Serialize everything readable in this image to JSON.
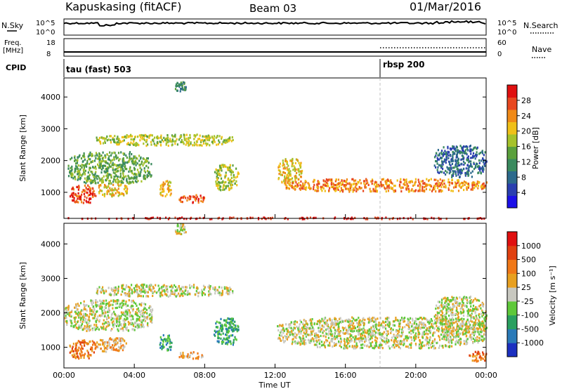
{
  "header": {
    "station": "Kapuskasing (fitACF)",
    "beam": "Beam 03",
    "date": "01/Mar/2016"
  },
  "top_panels": {
    "nsky_label": "N.Sky",
    "nsearch_label": "N.Search",
    "nsky_ticks": [
      "10^5",
      "10^0"
    ],
    "nsearch_ticks": [
      "10^5",
      "10^0"
    ],
    "freq_label": "Freq.",
    "freq_unit": "[MHz]",
    "freq_ticks": [
      "18",
      "8"
    ],
    "nave_label": "Nave",
    "nave_ticks": [
      "60",
      "0"
    ],
    "cpid_label": "CPID",
    "cpid_segments": [
      {
        "label": "tau (fast) 503",
        "start_h": 0
      },
      {
        "label": "rbsp 200",
        "start_h": 18
      }
    ]
  },
  "chart_data": [
    {
      "type": "heatmap",
      "name": "power",
      "ylabel": "Slant Range [km]",
      "yticks": [
        1000,
        2000,
        3000,
        4000
      ],
      "ylim": [
        180,
        4600
      ],
      "xlim": [
        0,
        24
      ],
      "colorbar": {
        "label": "Power [dB]",
        "ticks": [
          4,
          8,
          12,
          16,
          20,
          24,
          28
        ],
        "colors": [
          "#1c10e8",
          "#2a3fb0",
          "#2c6a8c",
          "#3a8a5e",
          "#5aa03c",
          "#a6c22a",
          "#f0c018",
          "#f08a18",
          "#e84820",
          "#e01010"
        ]
      },
      "regions": [
        {
          "x0": 0.2,
          "x1": 5.0,
          "y0": 1300,
          "y1": 2300,
          "level": 4
        },
        {
          "x0": 0.3,
          "x1": 1.8,
          "y0": 700,
          "y1": 1250,
          "level": 8
        },
        {
          "x0": 1.8,
          "x1": 3.6,
          "y0": 900,
          "y1": 1300,
          "level": 6
        },
        {
          "x0": 1.8,
          "x1": 9.6,
          "y0": 2500,
          "y1": 2850,
          "level": 5
        },
        {
          "x0": 5.4,
          "x1": 6.1,
          "y0": 900,
          "y1": 1400,
          "level": 6
        },
        {
          "x0": 6.5,
          "x1": 8.0,
          "y0": 700,
          "y1": 950,
          "level": 8
        },
        {
          "x0": 8.5,
          "x1": 9.9,
          "y0": 1100,
          "y1": 1900,
          "level": 5
        },
        {
          "x0": 6.3,
          "x1": 6.9,
          "y0": 4200,
          "y1": 4500,
          "level": 3
        },
        {
          "x0": 12.1,
          "x1": 13.5,
          "y0": 1300,
          "y1": 2100,
          "level": 6
        },
        {
          "x0": 12.5,
          "x1": 24.0,
          "y0": 1050,
          "y1": 1450,
          "level": 7
        },
        {
          "x0": 21.0,
          "x1": 24.0,
          "y0": 1500,
          "y1": 2500,
          "level": 2
        },
        {
          "x0": 0.0,
          "x1": 24.0,
          "y0": 190,
          "y1": 240,
          "level": 9
        }
      ]
    },
    {
      "type": "heatmap",
      "name": "velocity",
      "ylabel": "Slant Range [km]",
      "yticks": [
        1000,
        2000,
        3000,
        4000
      ],
      "ylim": [
        400,
        4600
      ],
      "xlim": [
        0,
        24
      ],
      "xticks": [
        "00:00",
        "04:00",
        "08:00",
        "12:00",
        "16:00",
        "20:00",
        "00:00"
      ],
      "xlabel": "Time UT",
      "colorbar": {
        "label": "Velocity [m s⁻¹]",
        "ticks": [
          "1000",
          "500",
          "100",
          "25",
          "-25",
          "-100",
          "-500",
          "-1000"
        ],
        "colors": [
          "#1c30c0",
          "#2a7ab8",
          "#2aa060",
          "#5ec83a",
          "#c8c8c0",
          "#e8a020",
          "#f07818",
          "#e04010",
          "#e01010"
        ]
      },
      "regions": [
        {
          "x0": 0.0,
          "x1": 5.0,
          "y0": 1500,
          "y1": 2400,
          "level": 4
        },
        {
          "x0": 1.8,
          "x1": 9.6,
          "y0": 2500,
          "y1": 2850,
          "level": 4
        },
        {
          "x0": 0.3,
          "x1": 1.8,
          "y0": 700,
          "y1": 1250,
          "level": 6
        },
        {
          "x0": 1.8,
          "x1": 3.6,
          "y0": 900,
          "y1": 1300,
          "level": 5
        },
        {
          "x0": 5.4,
          "x1": 6.1,
          "y0": 900,
          "y1": 1400,
          "level": 2
        },
        {
          "x0": 6.5,
          "x1": 8.0,
          "y0": 700,
          "y1": 900,
          "level": 5
        },
        {
          "x0": 8.5,
          "x1": 9.9,
          "y0": 1100,
          "y1": 1900,
          "level": 2
        },
        {
          "x0": 6.3,
          "x1": 6.9,
          "y0": 4300,
          "y1": 4600,
          "level": 4
        },
        {
          "x0": 12.1,
          "x1": 24.0,
          "y0": 1000,
          "y1": 1900,
          "level": 4
        },
        {
          "x0": 21.0,
          "x1": 24.0,
          "y0": 1400,
          "y1": 2500,
          "level": 4
        },
        {
          "x0": 23.0,
          "x1": 24.0,
          "y0": 600,
          "y1": 900,
          "level": 6
        }
      ]
    }
  ]
}
